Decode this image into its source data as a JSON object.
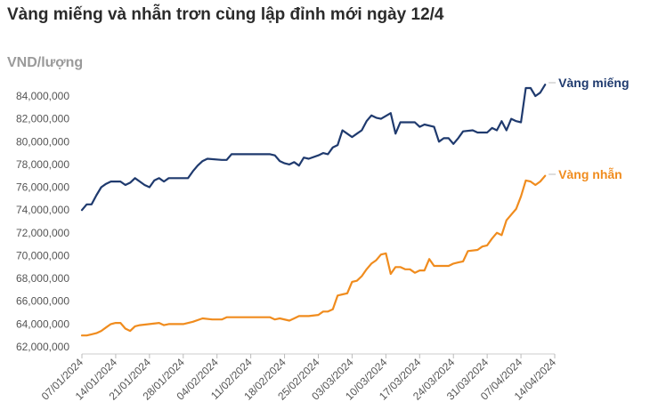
{
  "title": "Vàng miếng và nhẫn trơn cùng lập đỉnh mới ngày 12/4",
  "unit_label": "VND/lượng",
  "chart_data": {
    "type": "line",
    "title": "Vàng miếng và nhẫn trơn cùng lập đỉnh mới ngày 12/4",
    "ylabel": "VND/lượng",
    "xlabel": "",
    "ylim": [
      62000000,
      84000000
    ],
    "xlim": [
      "2024-01-07",
      "2024-04-14"
    ],
    "y_ticks": [
      "62,000,000",
      "64,000,000",
      "66,000,000",
      "68,000,000",
      "70,000,000",
      "72,000,000",
      "74,000,000",
      "76,000,000",
      "78,000,000",
      "80,000,000",
      "82,000,000",
      "84,000,000"
    ],
    "x_ticks": [
      "07/01/2024",
      "14/01/2024",
      "21/01/2024",
      "28/01/2024",
      "04/02/2024",
      "11/02/2024",
      "18/02/2024",
      "25/02/2024",
      "03/03/2024",
      "10/03/2024",
      "17/03/2024",
      "24/03/2024",
      "31/03/2024",
      "07/04/2024",
      "14/04/2024"
    ],
    "grid": false,
    "series": [
      {
        "name": "Vàng miếng",
        "color": "#1f3a6e",
        "points": [
          [
            "2024-01-07",
            74000000
          ],
          [
            "2024-01-08",
            74500000
          ],
          [
            "2024-01-09",
            74500000
          ],
          [
            "2024-01-10",
            75300000
          ],
          [
            "2024-01-11",
            76000000
          ],
          [
            "2024-01-12",
            76300000
          ],
          [
            "2024-01-13",
            76500000
          ],
          [
            "2024-01-15",
            76500000
          ],
          [
            "2024-01-16",
            76200000
          ],
          [
            "2024-01-17",
            76400000
          ],
          [
            "2024-01-18",
            76800000
          ],
          [
            "2024-01-19",
            76500000
          ],
          [
            "2024-01-20",
            76200000
          ],
          [
            "2024-01-21",
            76000000
          ],
          [
            "2024-01-22",
            76600000
          ],
          [
            "2024-01-23",
            76800000
          ],
          [
            "2024-01-24",
            76500000
          ],
          [
            "2024-01-25",
            76800000
          ],
          [
            "2024-01-29",
            76800000
          ],
          [
            "2024-01-30",
            77400000
          ],
          [
            "2024-01-31",
            77900000
          ],
          [
            "2024-02-01",
            78300000
          ],
          [
            "2024-02-02",
            78500000
          ],
          [
            "2024-02-05",
            78400000
          ],
          [
            "2024-02-06",
            78400000
          ],
          [
            "2024-02-07",
            78900000
          ],
          [
            "2024-02-14",
            78900000
          ],
          [
            "2024-02-15",
            78900000
          ],
          [
            "2024-02-16",
            78800000
          ],
          [
            "2024-02-17",
            78300000
          ],
          [
            "2024-02-18",
            78100000
          ],
          [
            "2024-02-19",
            78000000
          ],
          [
            "2024-02-20",
            78200000
          ],
          [
            "2024-02-21",
            77900000
          ],
          [
            "2024-02-22",
            78600000
          ],
          [
            "2024-02-23",
            78500000
          ],
          [
            "2024-02-25",
            78800000
          ],
          [
            "2024-02-26",
            79000000
          ],
          [
            "2024-02-27",
            78900000
          ],
          [
            "2024-02-28",
            79500000
          ],
          [
            "2024-02-29",
            79700000
          ],
          [
            "2024-03-01",
            81000000
          ],
          [
            "2024-03-02",
            80700000
          ],
          [
            "2024-03-03",
            80400000
          ],
          [
            "2024-03-04",
            80700000
          ],
          [
            "2024-03-05",
            81000000
          ],
          [
            "2024-03-06",
            81800000
          ],
          [
            "2024-03-07",
            82300000
          ],
          [
            "2024-03-08",
            82100000
          ],
          [
            "2024-03-09",
            82000000
          ],
          [
            "2024-03-11",
            82500000
          ],
          [
            "2024-03-12",
            80700000
          ],
          [
            "2024-03-13",
            81700000
          ],
          [
            "2024-03-16",
            81700000
          ],
          [
            "2024-03-17",
            81300000
          ],
          [
            "2024-03-18",
            81500000
          ],
          [
            "2024-03-20",
            81300000
          ],
          [
            "2024-03-21",
            80000000
          ],
          [
            "2024-03-22",
            80300000
          ],
          [
            "2024-03-23",
            80300000
          ],
          [
            "2024-03-24",
            79800000
          ],
          [
            "2024-03-25",
            80300000
          ],
          [
            "2024-03-26",
            80900000
          ],
          [
            "2024-03-28",
            81000000
          ],
          [
            "2024-03-29",
            80800000
          ],
          [
            "2024-03-31",
            80800000
          ],
          [
            "2024-04-01",
            81200000
          ],
          [
            "2024-04-02",
            81000000
          ],
          [
            "2024-04-03",
            81800000
          ],
          [
            "2024-04-04",
            81000000
          ],
          [
            "2024-04-05",
            82000000
          ],
          [
            "2024-04-06",
            81800000
          ],
          [
            "2024-04-07",
            81700000
          ],
          [
            "2024-04-08",
            84700000
          ],
          [
            "2024-04-09",
            84700000
          ],
          [
            "2024-04-10",
            84000000
          ],
          [
            "2024-04-11",
            84300000
          ],
          [
            "2024-04-12",
            85000000
          ]
        ]
      },
      {
        "name": "Vàng nhẫn",
        "color": "#f08c1e",
        "points": [
          [
            "2024-01-07",
            63000000
          ],
          [
            "2024-01-08",
            63000000
          ],
          [
            "2024-01-09",
            63100000
          ],
          [
            "2024-01-10",
            63200000
          ],
          [
            "2024-01-11",
            63400000
          ],
          [
            "2024-01-12",
            63700000
          ],
          [
            "2024-01-13",
            64000000
          ],
          [
            "2024-01-14",
            64100000
          ],
          [
            "2024-01-15",
            64100000
          ],
          [
            "2024-01-16",
            63600000
          ],
          [
            "2024-01-17",
            63400000
          ],
          [
            "2024-01-18",
            63800000
          ],
          [
            "2024-01-19",
            63900000
          ],
          [
            "2024-01-21",
            64000000
          ],
          [
            "2024-01-23",
            64100000
          ],
          [
            "2024-01-24",
            63900000
          ],
          [
            "2024-01-25",
            64000000
          ],
          [
            "2024-01-27",
            64000000
          ],
          [
            "2024-01-28",
            64000000
          ],
          [
            "2024-01-30",
            64200000
          ],
          [
            "2024-02-01",
            64500000
          ],
          [
            "2024-02-03",
            64400000
          ],
          [
            "2024-02-05",
            64400000
          ],
          [
            "2024-02-06",
            64600000
          ],
          [
            "2024-02-15",
            64600000
          ],
          [
            "2024-02-16",
            64400000
          ],
          [
            "2024-02-17",
            64500000
          ],
          [
            "2024-02-19",
            64300000
          ],
          [
            "2024-02-20",
            64500000
          ],
          [
            "2024-02-21",
            64700000
          ],
          [
            "2024-02-23",
            64700000
          ],
          [
            "2024-02-25",
            64800000
          ],
          [
            "2024-02-26",
            65100000
          ],
          [
            "2024-02-27",
            65100000
          ],
          [
            "2024-02-28",
            65300000
          ],
          [
            "2024-02-29",
            66500000
          ],
          [
            "2024-03-01",
            66600000
          ],
          [
            "2024-03-02",
            66700000
          ],
          [
            "2024-03-03",
            67700000
          ],
          [
            "2024-03-04",
            67800000
          ],
          [
            "2024-03-05",
            68200000
          ],
          [
            "2024-03-06",
            68800000
          ],
          [
            "2024-03-07",
            69300000
          ],
          [
            "2024-03-08",
            69600000
          ],
          [
            "2024-03-09",
            70100000
          ],
          [
            "2024-03-10",
            70200000
          ],
          [
            "2024-03-11",
            68400000
          ],
          [
            "2024-03-12",
            69000000
          ],
          [
            "2024-03-13",
            69000000
          ],
          [
            "2024-03-14",
            68800000
          ],
          [
            "2024-03-15",
            68800000
          ],
          [
            "2024-03-16",
            68500000
          ],
          [
            "2024-03-17",
            68700000
          ],
          [
            "2024-03-18",
            68700000
          ],
          [
            "2024-03-19",
            69700000
          ],
          [
            "2024-03-20",
            69100000
          ],
          [
            "2024-03-23",
            69100000
          ],
          [
            "2024-03-24",
            69300000
          ],
          [
            "2024-03-25",
            69400000
          ],
          [
            "2024-03-26",
            69500000
          ],
          [
            "2024-03-27",
            70400000
          ],
          [
            "2024-03-29",
            70500000
          ],
          [
            "2024-03-30",
            70800000
          ],
          [
            "2024-03-31",
            70900000
          ],
          [
            "2024-04-01",
            71500000
          ],
          [
            "2024-04-02",
            72000000
          ],
          [
            "2024-04-03",
            71800000
          ],
          [
            "2024-04-04",
            73100000
          ],
          [
            "2024-04-05",
            73600000
          ],
          [
            "2024-04-06",
            74100000
          ],
          [
            "2024-04-07",
            75200000
          ],
          [
            "2024-04-08",
            76600000
          ],
          [
            "2024-04-09",
            76500000
          ],
          [
            "2024-04-10",
            76200000
          ],
          [
            "2024-04-11",
            76500000
          ],
          [
            "2024-04-12",
            77000000
          ]
        ]
      }
    ]
  }
}
